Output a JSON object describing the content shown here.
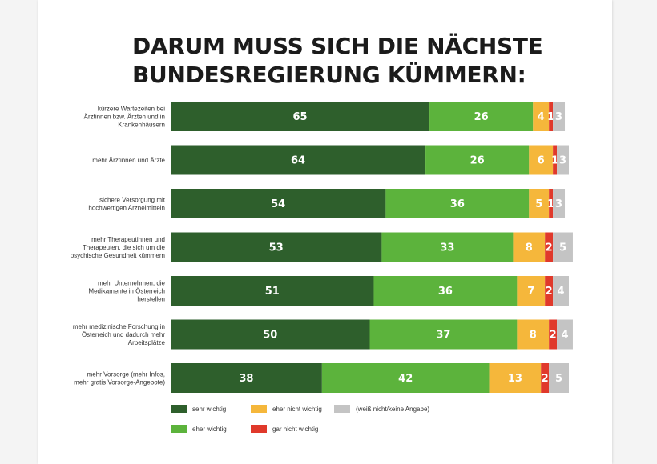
{
  "title_lines": [
    "DARUM MUSS SICH DIE NÄCHSTE",
    "BUNDESREGIERUNG KÜMMERN:"
  ],
  "chart_data": {
    "type": "bar",
    "orientation": "horizontal",
    "stacked": true,
    "title": "DARUM MUSS SICH DIE NÄCHSTE BUNDESREGIERUNG KÜMMERN:",
    "categories": [
      [
        "kürzere Wartezeiten bei",
        "Ärztinnen bzw. Ärzten und in",
        "Krankenhäusern"
      ],
      [
        "mehr Ärztinnen und Ärzte"
      ],
      [
        "sichere Versorgung mit",
        "hochwertigen Arzneimitteln"
      ],
      [
        "mehr Therapeutinnen und",
        "Therapeuten, die sich um die",
        "psychische Gesundheit kümmern"
      ],
      [
        "mehr Unternehmen, die",
        "Medikamente in Österreich",
        "herstellen"
      ],
      [
        "mehr medizinische Forschung in",
        "Österreich und dadurch mehr",
        "Arbeitsplätze"
      ],
      [
        "mehr Vorsorge (mehr Infos,",
        "mehr gratis Vorsorge-Angebote)"
      ]
    ],
    "series": [
      {
        "name": "sehr wichtig",
        "color": "#2e5f2c",
        "values": [
          65,
          64,
          54,
          53,
          51,
          50,
          38
        ]
      },
      {
        "name": "eher wichtig",
        "color": "#5cb33c",
        "values": [
          26,
          26,
          36,
          33,
          36,
          37,
          42
        ]
      },
      {
        "name": "eher nicht wichtig",
        "color": "#f5b73b",
        "values": [
          4,
          6,
          5,
          8,
          7,
          8,
          13
        ]
      },
      {
        "name": "gar nicht wichtig",
        "color": "#e0392b",
        "values": [
          1,
          1,
          1,
          2,
          2,
          2,
          2
        ]
      },
      {
        "name": "(weiß nicht/keine Angabe)",
        "color": "#c4c4c4",
        "values": [
          3,
          3,
          3,
          5,
          4,
          4,
          5
        ]
      }
    ],
    "legend_position": "bottom",
    "legend_order": [
      0,
      2,
      4,
      1,
      3
    ],
    "xlim": [
      0,
      100
    ],
    "grid": false
  }
}
